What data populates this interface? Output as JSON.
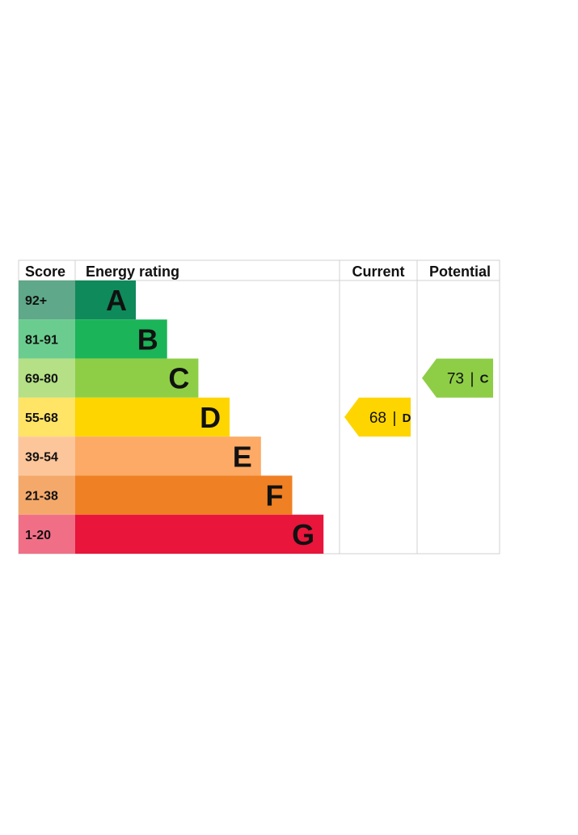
{
  "headers": {
    "score": "Score",
    "energy_rating": "Energy rating",
    "current": "Current",
    "potential": "Potential"
  },
  "chart_data": {
    "type": "bar",
    "bands": [
      {
        "letter": "A",
        "range": "92+",
        "color": "#0f8a5b",
        "score_color": "#5fa889"
      },
      {
        "letter": "B",
        "range": "81-91",
        "color": "#1cb458",
        "score_color": "#6acd8f"
      },
      {
        "letter": "C",
        "range": "69-80",
        "color": "#8dce46",
        "score_color": "#b5e086"
      },
      {
        "letter": "D",
        "range": "55-68",
        "color": "#ffd500",
        "score_color": "#ffe466"
      },
      {
        "letter": "E",
        "range": "39-54",
        "color": "#fcaa65",
        "score_color": "#fdc69a"
      },
      {
        "letter": "F",
        "range": "21-38",
        "color": "#ef8023",
        "score_color": "#f4a96a"
      },
      {
        "letter": "G",
        "range": "1-20",
        "color": "#e9153b",
        "score_color": "#f06f87"
      }
    ],
    "current": {
      "value": 68,
      "letter": "D",
      "color": "#ffd500"
    },
    "potential": {
      "value": 73,
      "letter": "C",
      "color": "#8dce46"
    }
  }
}
